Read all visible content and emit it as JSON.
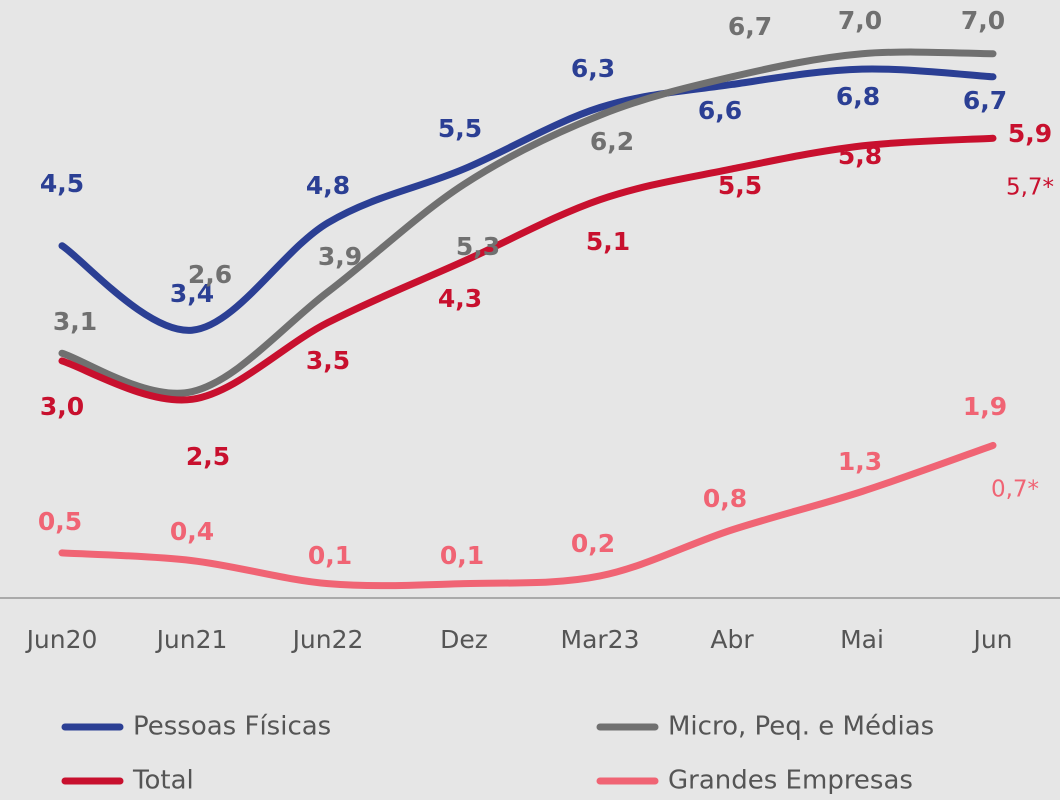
{
  "chart_data": {
    "type": "line",
    "categories": [
      "Jun20",
      "Jun21",
      "Jun22",
      "Dez",
      "Mar23",
      "Abr",
      "Mai",
      "Jun"
    ],
    "ylim": [
      -0.1,
      7.7
    ],
    "series": [
      {
        "name": "Pessoas Físicas",
        "color": "#2b3f94",
        "values": [
          4.5,
          3.4,
          4.8,
          5.5,
          6.3,
          6.6,
          6.8,
          6.7
        ],
        "value_labels": [
          "4,5",
          "3,4",
          "4,8",
          "5,5",
          "6,3",
          "6,6",
          "6,8",
          "6,7"
        ]
      },
      {
        "name": "Micro, Peq. e Médias",
        "color": "#707070",
        "values": [
          3.1,
          2.6,
          3.9,
          5.3,
          6.2,
          6.7,
          7.0,
          7.0
        ],
        "value_labels": [
          "3,1",
          "2,6",
          "3,9",
          "5,3",
          "6,2",
          "6,7",
          "7,0",
          "7,0"
        ]
      },
      {
        "name": "Total",
        "color": "#c8102e",
        "values": [
          3.0,
          2.5,
          3.5,
          4.3,
          5.1,
          5.5,
          5.8,
          5.9
        ],
        "value_labels": [
          "3,0",
          "2,5",
          "3,5",
          "4,3",
          "5,1",
          "5,5",
          "5,8",
          "5,9"
        ]
      },
      {
        "name": "Grandes Empresas",
        "color": "#f06474",
        "values": [
          0.5,
          0.4,
          0.1,
          0.1,
          0.2,
          0.8,
          1.3,
          1.9
        ],
        "value_labels": [
          "0,5",
          "0,4",
          "0,1",
          "0,1",
          "0,2",
          "0,8",
          "1,3",
          "1,9"
        ]
      }
    ],
    "annotations": [
      {
        "text": "5,7*",
        "color": "#c8102e"
      },
      {
        "text": "0,7*",
        "color": "#f06474"
      }
    ]
  }
}
